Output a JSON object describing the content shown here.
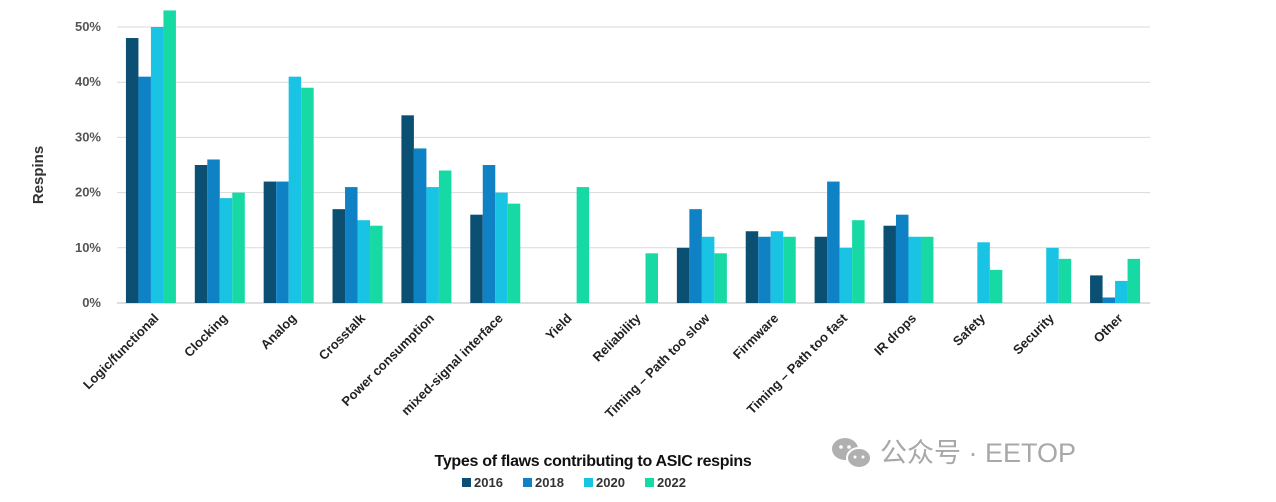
{
  "chart_data": {
    "type": "bar",
    "title": "",
    "xlabel": "Types of flaws contributing to ASIC respins",
    "ylabel": "Respins",
    "ylim": [
      0,
      50
    ],
    "yticks": [
      "0%",
      "10%",
      "20%",
      "30%",
      "40%",
      "50%"
    ],
    "grid": true,
    "legend_position": "bottom",
    "categories": [
      "Logic/functional",
      "Clocking",
      "Analog",
      "Crosstalk",
      "Power consumption",
      "mixed-signal interface",
      "Yield",
      "Reliability",
      "Timing – Path too slow",
      "Firmware",
      "Timing – Path too fast",
      "IR drops",
      "Safety",
      "Security",
      "Other"
    ],
    "series": [
      {
        "name": "2016",
        "color": "#0b4f73",
        "values": [
          48,
          25,
          22,
          17,
          34,
          16,
          null,
          null,
          10,
          13,
          12,
          14,
          null,
          null,
          5
        ]
      },
      {
        "name": "2018",
        "color": "#0e82c4",
        "values": [
          41,
          26,
          22,
          21,
          28,
          25,
          null,
          null,
          17,
          12,
          22,
          16,
          null,
          null,
          1
        ]
      },
      {
        "name": "2020",
        "color": "#18c3e3",
        "values": [
          50,
          19,
          41,
          15,
          21,
          20,
          null,
          null,
          12,
          13,
          10,
          12,
          11,
          10,
          4
        ]
      },
      {
        "name": "2022",
        "color": "#17d9a4",
        "values": [
          53,
          20,
          39,
          14,
          24,
          18,
          21,
          9,
          9,
          12,
          15,
          12,
          6,
          8,
          8
        ]
      }
    ]
  },
  "watermark": {
    "text": "公众号 · EETOP",
    "icon": "wechat-icon"
  }
}
